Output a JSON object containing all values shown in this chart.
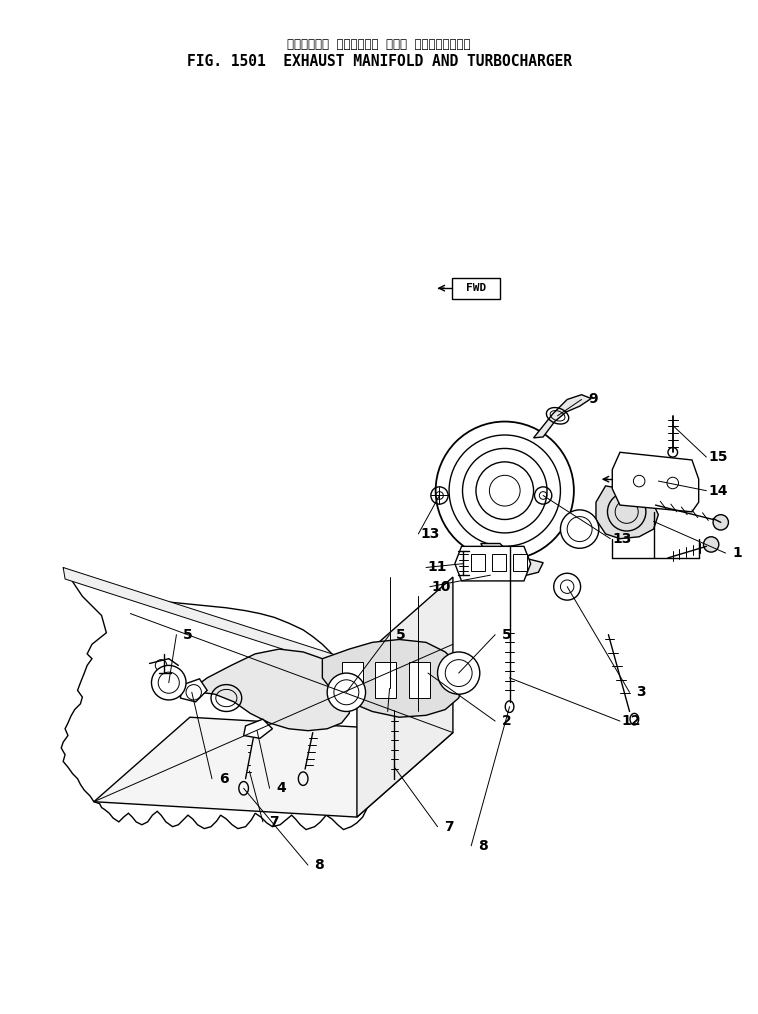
{
  "title_japanese": "エキゾースト  マニホールド  および  ターボチャージャ",
  "title_english": "FIG. 1501  EXHAUST MANIFOLD AND TURBOCHARGER",
  "bg_color": "#ffffff",
  "line_color": "#000000",
  "fig_width": 7.58,
  "fig_height": 10.14
}
